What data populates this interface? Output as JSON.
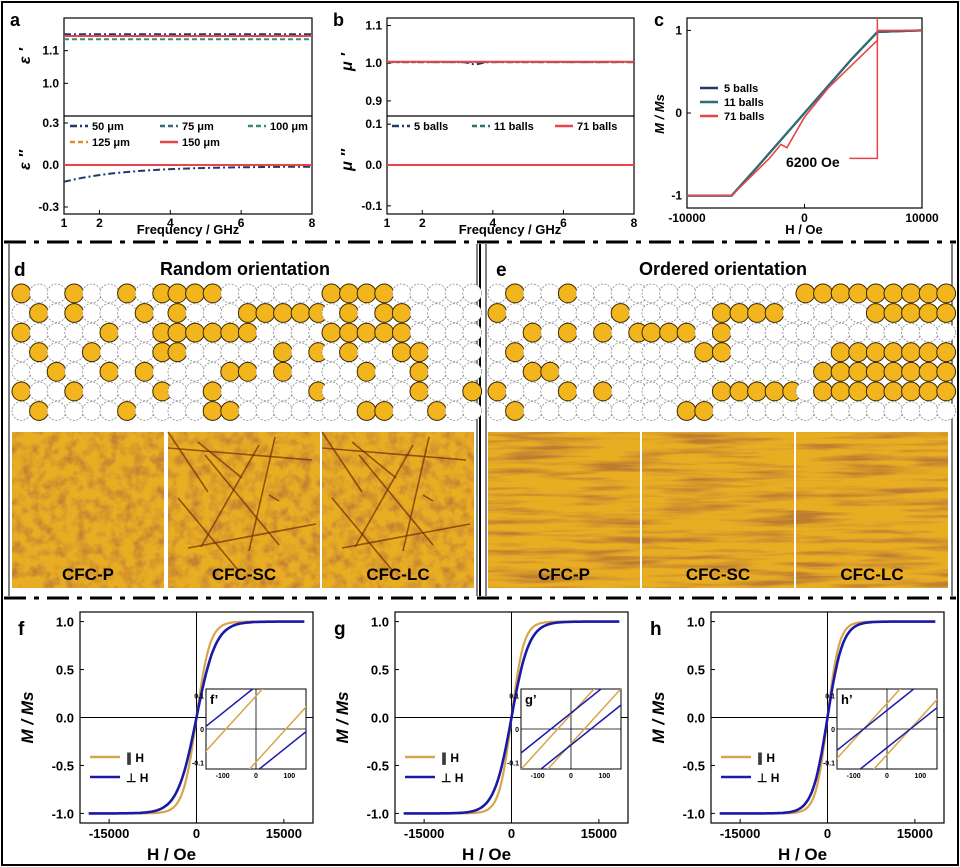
{
  "colors": {
    "navy": "#1f3a6b",
    "teal": "#2e6f73",
    "orange": "#d98f2b",
    "red": "#e8444a",
    "gold_fill": "#f2b51d",
    "blue_loop": "#1a1aa8",
    "gold_loop": "#d8a54a"
  },
  "panels": {
    "a": {
      "letter": "a"
    },
    "b": {
      "letter": "b"
    },
    "c": {
      "letter": "c"
    },
    "d": {
      "letter": "d",
      "title": "Random orientation"
    },
    "e": {
      "letter": "e",
      "title": "Ordered orientation"
    },
    "f": {
      "letter": "f",
      "inset_letter": "f’"
    },
    "g": {
      "letter": "g",
      "inset_letter": "g’"
    },
    "h": {
      "letter": "h",
      "inset_letter": "h’"
    }
  },
  "samples": [
    "CFC-P",
    "CFC-SC",
    "CFC-LC",
    "CFC-P",
    "CFC-SC",
    "CFC-LC"
  ],
  "chart_data": [
    {
      "id": "a",
      "type": "line",
      "xlabel": "Frequency / GHz",
      "top_ylabel": "ε ′",
      "bottom_ylabel": "ε ″",
      "xlim": [
        1,
        8
      ],
      "xticks": [
        "1",
        "2",
        "4",
        "6",
        "8"
      ],
      "top_ylim": [
        0.9,
        1.2
      ],
      "top_yticks": [
        "1.1",
        "1.0"
      ],
      "bottom_ylim": [
        -0.35,
        0.35
      ],
      "bottom_yticks": [
        "0.3",
        "0.0",
        "-0.3"
      ],
      "series": [
        {
          "name": "50 μm",
          "color": "#1f3a6b",
          "dash": "dashdot",
          "real": 1.15,
          "imag_start": -0.12,
          "imag_end": -0.01
        },
        {
          "name": "75 μm",
          "color": "#2e6f73",
          "dash": "dash",
          "real": 1.145,
          "imag_start": 0.0,
          "imag_end": 0.0
        },
        {
          "name": "100 μm",
          "color": "#3a8a7a",
          "dash": "dash",
          "real": 1.135,
          "imag_start": 0.0,
          "imag_end": 0.0
        },
        {
          "name": "125 μm",
          "color": "#d98f2b",
          "dash": "dash",
          "real": 1.145,
          "imag_start": 0.0,
          "imag_end": 0.0
        },
        {
          "name": "150 μm",
          "color": "#e8444a",
          "dash": "solid",
          "real": 1.145,
          "imag_start": 0.0,
          "imag_end": 0.0
        }
      ]
    },
    {
      "id": "b",
      "type": "line",
      "xlabel": "Frequency / GHz",
      "top_ylabel": "μ ′",
      "bottom_ylabel": "μ ″",
      "xlim": [
        1,
        8
      ],
      "xticks": [
        "1",
        "2",
        "4",
        "6",
        "8"
      ],
      "top_ylim": [
        0.86,
        1.12
      ],
      "top_yticks": [
        "1.1",
        "1.0",
        "0.9"
      ],
      "bottom_ylim": [
        -0.12,
        0.12
      ],
      "bottom_yticks": [
        "0.1",
        "0.0",
        "-0.1"
      ],
      "series": [
        {
          "name": "5 balls",
          "color": "#1f3a6b",
          "dash": "dashdot",
          "real": 1.003,
          "imag": 0.0
        },
        {
          "name": "11 balls",
          "color": "#2e6f73",
          "dash": "dash",
          "real": 1.003,
          "imag": 0.0
        },
        {
          "name": "71 balls",
          "color": "#e8444a",
          "dash": "solid",
          "real": 1.004,
          "imag": 0.0
        }
      ]
    },
    {
      "id": "c",
      "type": "line",
      "xlabel": "H / Oe",
      "ylabel": "M / Ms",
      "xlim": [
        -10000,
        10000
      ],
      "ylim": [
        -1.15,
        1.15
      ],
      "xticks": [
        "-10000",
        "0",
        "10000"
      ],
      "yticks": [
        "1",
        "0",
        "-1"
      ],
      "annotation": "6200 Oe",
      "saturation_field": 6200,
      "series": [
        {
          "name": "5   balls",
          "color": "#1f3a6b"
        },
        {
          "name": "11 balls",
          "color": "#2e6f73"
        },
        {
          "name": "71 balls",
          "color": "#e8444a"
        }
      ]
    },
    {
      "id": "f",
      "type": "line",
      "xlabel": "H / Oe",
      "ylabel": "M / Ms",
      "xlim": [
        -20000,
        20000
      ],
      "ylim": [
        -1.1,
        1.1
      ],
      "xticks": [
        "-15000",
        "0",
        "15000"
      ],
      "yticks": [
        "1.0",
        "0.5",
        "0.0",
        "-0.5",
        "-1.0"
      ],
      "legend": [
        "∥ H",
        "⊥ H"
      ],
      "inset": {
        "xticks": [
          "-100",
          "0",
          "100"
        ],
        "yticks": [
          "0.1",
          "0",
          "-0.1"
        ],
        "gold_hc": 90,
        "blue_hc": 160
      },
      "series": [
        {
          "name": "∥ H",
          "color": "#d8a54a",
          "scale": 2300
        },
        {
          "name": "⊥ H",
          "color": "#1a1aa8",
          "scale": 3300
        }
      ]
    },
    {
      "id": "g",
      "type": "line",
      "xlabel": "H / Oe",
      "ylabel": "M / Ms",
      "xlim": [
        -20000,
        20000
      ],
      "ylim": [
        -1.1,
        1.1
      ],
      "xticks": [
        "-15000",
        "0",
        "15000"
      ],
      "yticks": [
        "1.0",
        "0.5",
        "0.0",
        "-0.5",
        "-1.0"
      ],
      "legend": [
        "∥ H",
        "⊥ H"
      ],
      "inset": {
        "xticks": [
          "-100",
          "0",
          "100"
        ],
        "yticks": [
          "0.1",
          "0",
          "-0.1"
        ],
        "gold_hc": 40,
        "blue_hc": 60
      },
      "series": [
        {
          "name": "∥ H",
          "color": "#d8a54a",
          "scale": 2100
        },
        {
          "name": "⊥ H",
          "color": "#1a1aa8",
          "scale": 3000
        }
      ]
    },
    {
      "id": "h",
      "type": "line",
      "xlabel": "H / Oe",
      "ylabel": "M / Ms",
      "xlim": [
        -20000,
        20000
      ],
      "ylim": [
        -1.1,
        1.1
      ],
      "xticks": [
        "-15000",
        "0",
        "15000"
      ],
      "yticks": [
        "1.0",
        "0.5",
        "0.0",
        "-0.5",
        "-1.0"
      ],
      "legend": [
        "∥ H",
        "⊥ H"
      ],
      "inset": {
        "xticks": [
          "-100",
          "0",
          "100"
        ],
        "yticks": [
          "0.1",
          "0",
          "-0.1"
        ],
        "gold_hc": 70,
        "blue_hc": 70
      },
      "series": [
        {
          "name": "∥ H",
          "color": "#d8a54a",
          "scale": 2000
        },
        {
          "name": "⊥ H",
          "color": "#1a1aa8",
          "scale": 2600
        }
      ]
    }
  ],
  "ball_grids": {
    "cols": 9,
    "rows": 7,
    "patterns": [
      [
        "100100101",
        "010100010",
        "100001001",
        "010010001",
        "001001010",
        "100100001",
        "010000100"
      ],
      [
        "111000000",
        "100011111",
        "111110000",
        "100000101",
        "000110100",
        "001000001",
        "001100000"
      ],
      [
        "111100000",
        "010110000",
        "111110000",
        "010011000",
        "001001000",
        "000001001",
        "001100100"
      ],
      [
        "010010000",
        "100000010",
        "001010101",
        "010000000",
        "001100000",
        "100010100",
        "010000000"
      ],
      [
        "000000000",
        "000011110",
        "111010000",
        "000110000",
        "000000000",
        "000011111",
        "001100000"
      ],
      [
        "111111111",
        "000011111",
        "000000000",
        "001111111",
        "011111111",
        "011111111",
        "000000000"
      ]
    ]
  }
}
